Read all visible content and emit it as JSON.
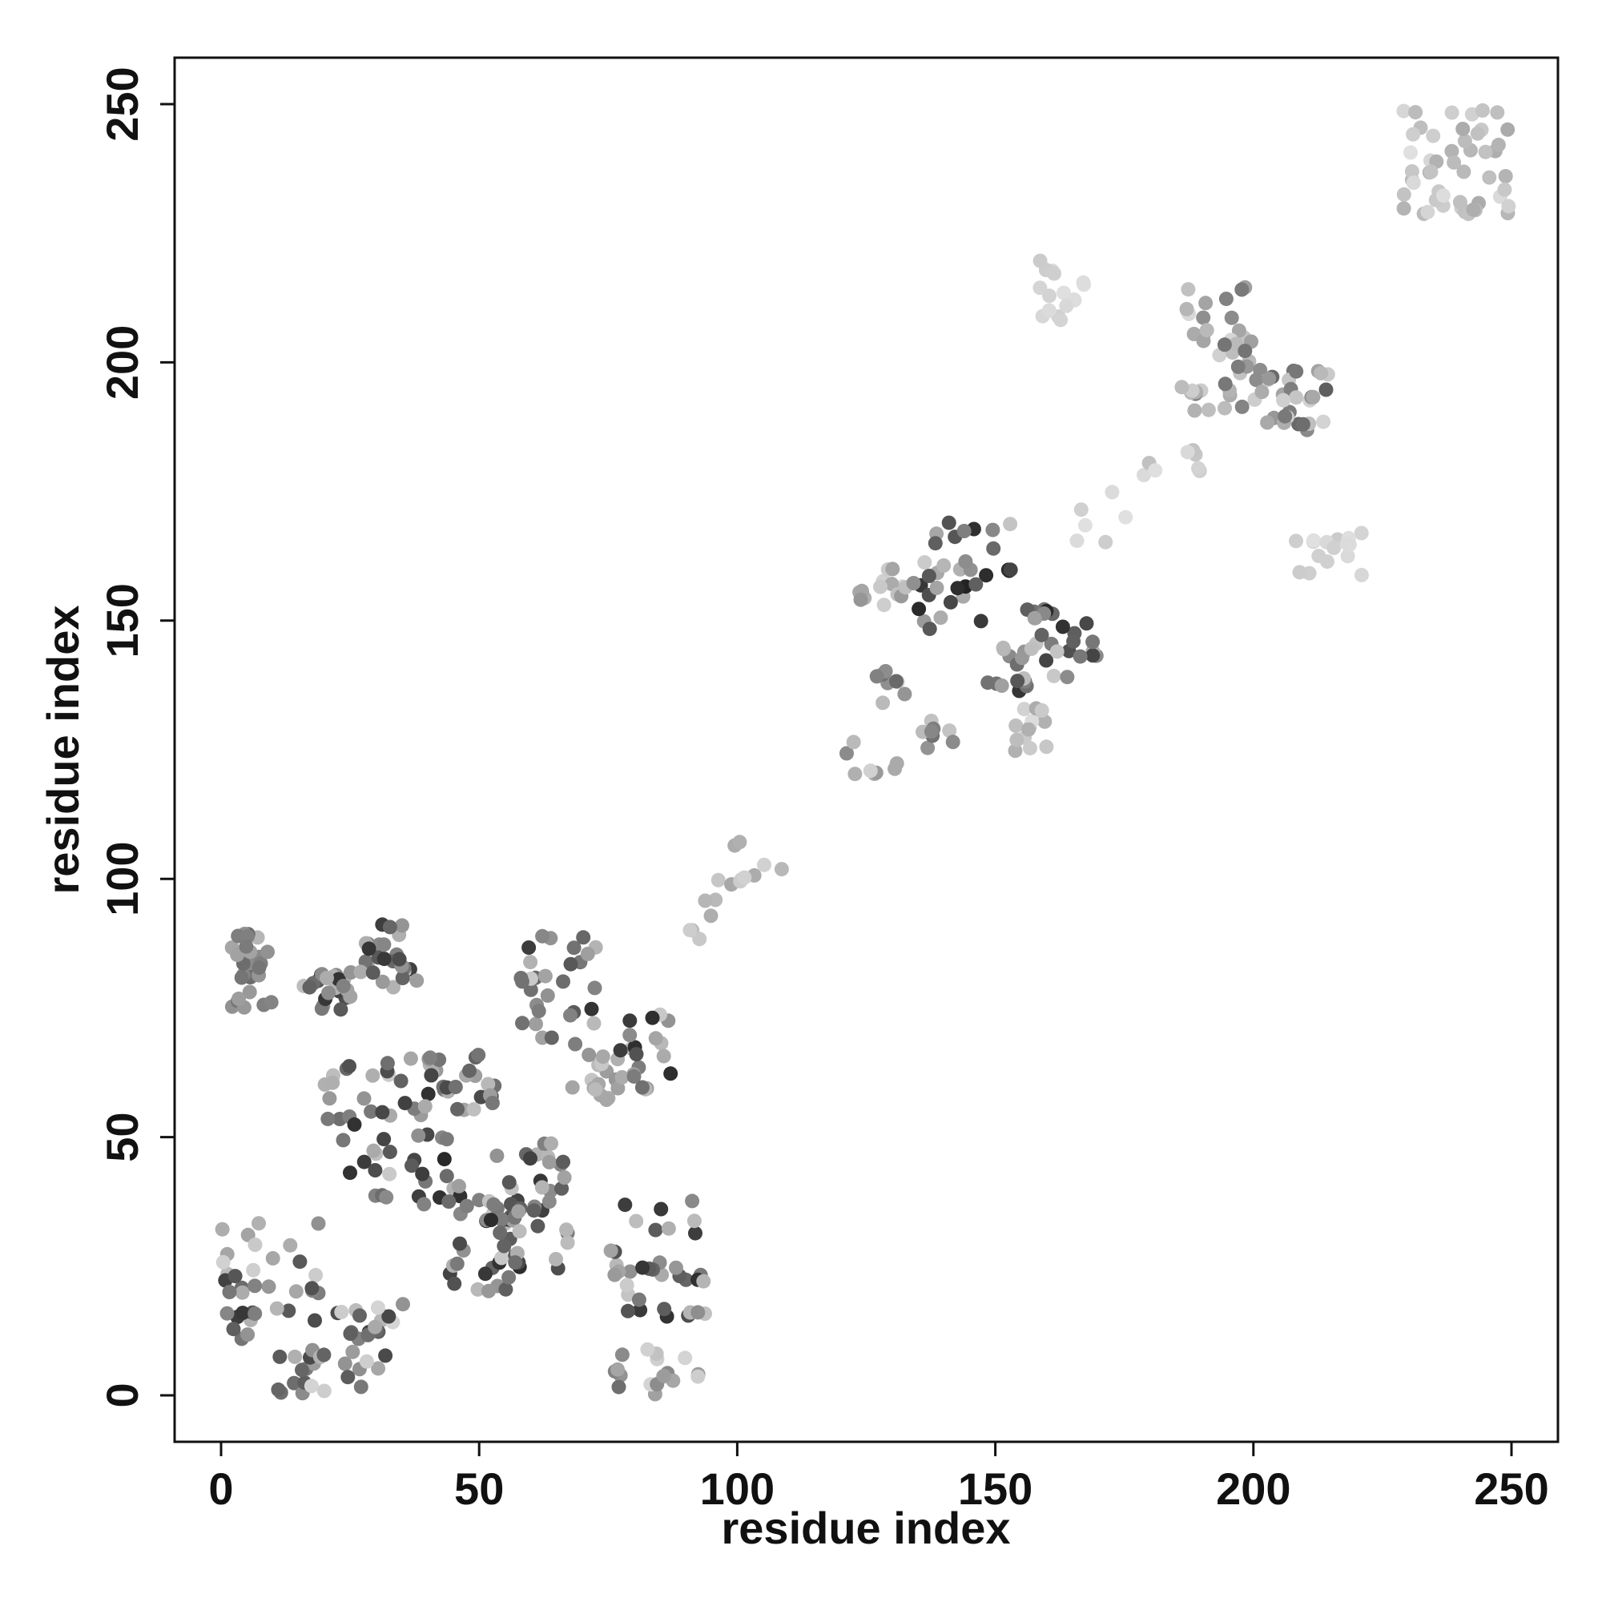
{
  "chart_data": {
    "type": "scatter",
    "title": "",
    "xlabel": "residue index",
    "ylabel": "residue index",
    "xlim": [
      -9,
      259
    ],
    "ylim": [
      -9,
      259
    ],
    "xticks": [
      0,
      50,
      100,
      150,
      200,
      250
    ],
    "yticks": [
      0,
      50,
      100,
      150,
      200,
      250
    ],
    "xtick_labels": [
      "0",
      "50",
      "100",
      "150",
      "200",
      "250"
    ],
    "ytick_labels": [
      "0",
      "50",
      "100",
      "150",
      "200",
      "250"
    ],
    "grid": false,
    "legend": "none",
    "marker_shape": "circle",
    "color_scale": "grayscale (light to dark)",
    "clusters": [
      {
        "x": [
          2,
          10
        ],
        "y": [
          75,
          90
        ],
        "n": 26,
        "shade": [
          0.2,
          0.6
        ]
      },
      {
        "x": [
          16,
          26
        ],
        "y": [
          74,
          82
        ],
        "n": 24,
        "shade": [
          0.2,
          0.85
        ]
      },
      {
        "x": [
          27,
          38
        ],
        "y": [
          79,
          93
        ],
        "n": 26,
        "shade": [
          0.2,
          0.85
        ]
      },
      {
        "x": [
          20,
          47
        ],
        "y": [
          37,
          67
        ],
        "n": 58,
        "shade": [
          0.15,
          0.9
        ]
      },
      {
        "x": [
          40,
          53
        ],
        "y": [
          55,
          66
        ],
        "n": 22,
        "shade": [
          0.15,
          0.9
        ]
      },
      {
        "x": [
          43,
          58
        ],
        "y": [
          20,
          38
        ],
        "n": 36,
        "shade": [
          0.15,
          0.9
        ]
      },
      {
        "x": [
          52,
          68
        ],
        "y": [
          24,
          50
        ],
        "n": 36,
        "shade": [
          0.15,
          0.9
        ]
      },
      {
        "x": [
          58,
          74
        ],
        "y": [
          68,
          89
        ],
        "n": 30,
        "shade": [
          0.15,
          0.85
        ]
      },
      {
        "x": [
          68,
          77
        ],
        "y": [
          57,
          66
        ],
        "n": 16,
        "shade": [
          0.1,
          0.4
        ]
      },
      {
        "x": [
          77,
          88
        ],
        "y": [
          59,
          74
        ],
        "n": 20,
        "shade": [
          0.15,
          0.9
        ]
      },
      {
        "x": [
          75,
          95
        ],
        "y": [
          15,
          38
        ],
        "n": 36,
        "shade": [
          0.15,
          0.9
        ]
      },
      {
        "x": [
          76,
          93
        ],
        "y": [
          0,
          9
        ],
        "n": 18,
        "shade": [
          0.1,
          0.6
        ]
      },
      {
        "x": [
          0,
          19
        ],
        "y": [
          9,
          34
        ],
        "n": 36,
        "shade": [
          0.1,
          0.85
        ]
      },
      {
        "x": [
          11,
          20
        ],
        "y": [
          0,
          10
        ],
        "n": 16,
        "shade": [
          0.1,
          0.8
        ]
      },
      {
        "x": [
          22,
          36
        ],
        "y": [
          1,
          19
        ],
        "n": 26,
        "shade": [
          0.1,
          0.85
        ]
      },
      {
        "x": [
          88,
          100
        ],
        "y": [
          88,
          100
        ],
        "n": 8,
        "shade": [
          0.1,
          0.35
        ]
      },
      {
        "x": [
          98,
          109
        ],
        "y": [
          99,
          108
        ],
        "n": 8,
        "shade": [
          0.1,
          0.3
        ]
      },
      {
        "x": [
          120,
          132
        ],
        "y": [
          119,
          129
        ],
        "n": 8,
        "shade": [
          0.1,
          0.5
        ]
      },
      {
        "x": [
          126,
          133
        ],
        "y": [
          134,
          141
        ],
        "n": 8,
        "shade": [
          0.1,
          0.6
        ]
      },
      {
        "x": [
          123,
          133
        ],
        "y": [
          153,
          160
        ],
        "n": 14,
        "shade": [
          0.1,
          0.4
        ]
      },
      {
        "x": [
          134,
          142
        ],
        "y": [
          125,
          131
        ],
        "n": 8,
        "shade": [
          0.15,
          0.6
        ]
      },
      {
        "x": [
          134,
          153
        ],
        "y": [
          148,
          169
        ],
        "n": 34,
        "shade": [
          0.15,
          0.95
        ]
      },
      {
        "x": [
          148,
          157
        ],
        "y": [
          136,
          146
        ],
        "n": 14,
        "shade": [
          0.15,
          0.85
        ]
      },
      {
        "x": [
          153,
          160
        ],
        "y": [
          123,
          133
        ],
        "n": 14,
        "shade": [
          0.05,
          0.3
        ]
      },
      {
        "x": [
          156,
          170
        ],
        "y": [
          139,
          153
        ],
        "n": 26,
        "shade": [
          0.15,
          0.95
        ]
      },
      {
        "x": [
          158,
          168
        ],
        "y": [
          208,
          220
        ],
        "n": 16,
        "shade": [
          0.05,
          0.15
        ]
      },
      {
        "x": [
          165,
          176
        ],
        "y": [
          165,
          175
        ],
        "n": 6,
        "shade": [
          0.05,
          0.15
        ]
      },
      {
        "x": [
          177,
          190
        ],
        "y": [
          178,
          188
        ],
        "n": 8,
        "shade": [
          0.05,
          0.2
        ]
      },
      {
        "x": [
          186,
          200
        ],
        "y": [
          188,
          215
        ],
        "n": 40,
        "shade": [
          0.05,
          0.6
        ]
      },
      {
        "x": [
          200,
          215
        ],
        "y": [
          186,
          199
        ],
        "n": 32,
        "shade": [
          0.05,
          0.7
        ]
      },
      {
        "x": [
          208,
          221
        ],
        "y": [
          158,
          168
        ],
        "n": 16,
        "shade": [
          0.05,
          0.15
        ]
      },
      {
        "x": [
          229,
          250
        ],
        "y": [
          228,
          250
        ],
        "n": 50,
        "shade": [
          0.05,
          0.3
        ]
      }
    ]
  }
}
